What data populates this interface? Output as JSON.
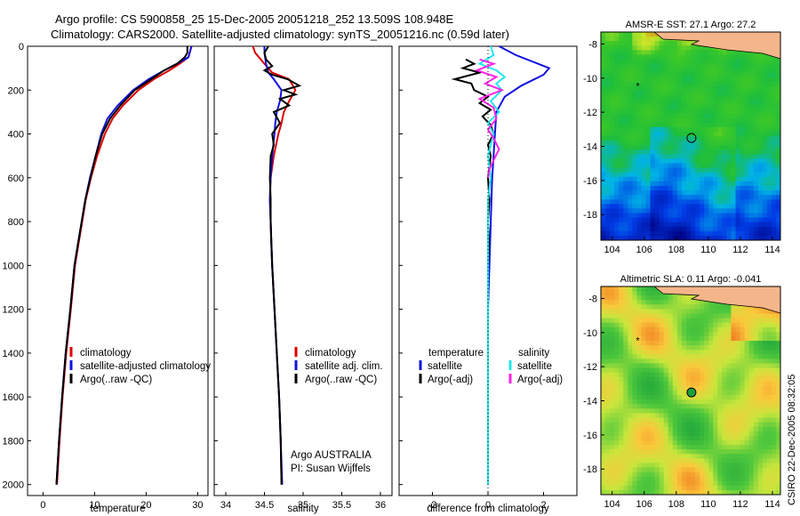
{
  "title_line1": "Argo profile: CS 5900858_25 15-Dec-2005 20051218_252 13.509S 108.948E",
  "title_line2": "Climatology: CARS2000. Satellite-adjusted climatology: synTS_20051216.nc (0.59d later)",
  "credit": "CSIRO 22-Dec-2005 08:32:05",
  "colors": {
    "red": "#e00000",
    "blue": "#1010e0",
    "black": "#000000",
    "cyan": "#22e6ee",
    "magenta": "#ff22e6"
  },
  "chart_data": [
    {
      "type": "line",
      "xlabel": "temperature",
      "xticks": [
        "0",
        "10",
        "20",
        "30"
      ],
      "yticks": [
        "0",
        "200",
        "400",
        "600",
        "800",
        "1000",
        "1200",
        "1400",
        "1600",
        "1800",
        "2000"
      ],
      "xlim": [
        -3,
        32
      ],
      "ylim": [
        2050,
        0
      ],
      "legend": [
        "climatology",
        "satellite-adjusted climatology",
        "Argo(..raw -QC)"
      ],
      "series": [
        {
          "name": "climatology",
          "color": "red",
          "points": [
            [
              28.8,
              0
            ],
            [
              28.2,
              50
            ],
            [
              26.5,
              80
            ],
            [
              24.5,
              110
            ],
            [
              21.5,
              150
            ],
            [
              18.5,
              200
            ],
            [
              15.5,
              270
            ],
            [
              13.5,
              330
            ],
            [
              12,
              400
            ],
            [
              10.5,
              500
            ],
            [
              9.3,
              600
            ],
            [
              8.3,
              700
            ],
            [
              7.6,
              800
            ],
            [
              6.9,
              900
            ],
            [
              6.2,
              1000
            ],
            [
              5.4,
              1200
            ],
            [
              4.5,
              1400
            ],
            [
              3.8,
              1600
            ],
            [
              3.2,
              1800
            ],
            [
              2.7,
              2000
            ]
          ]
        },
        {
          "name": "satellite-adjusted climatology",
          "color": "blue",
          "points": [
            [
              28.8,
              0
            ],
            [
              28.2,
              50
            ],
            [
              26,
              80
            ],
            [
              23.5,
              110
            ],
            [
              20.5,
              150
            ],
            [
              17.5,
              200
            ],
            [
              14.5,
              270
            ],
            [
              12.5,
              330
            ],
            [
              11.3,
              400
            ],
            [
              10.2,
              500
            ],
            [
              9.1,
              600
            ],
            [
              8.2,
              700
            ],
            [
              7.5,
              800
            ],
            [
              6.8,
              900
            ],
            [
              6.1,
              1000
            ],
            [
              5.3,
              1200
            ],
            [
              4.4,
              1400
            ],
            [
              3.7,
              1600
            ],
            [
              3.1,
              1800
            ],
            [
              2.6,
              2000
            ]
          ]
        },
        {
          "name": "Argo(..raw -QC)",
          "color": "black",
          "points": [
            [
              28,
              0
            ],
            [
              28,
              30
            ],
            [
              27.5,
              50
            ],
            [
              26,
              80
            ],
            [
              23.5,
              110
            ],
            [
              21,
              150
            ],
            [
              17.8,
              200
            ],
            [
              15,
              270
            ],
            [
              13,
              330
            ],
            [
              11.5,
              400
            ],
            [
              10.2,
              500
            ],
            [
              9.2,
              600
            ],
            [
              8.2,
              700
            ],
            [
              7.5,
              800
            ],
            [
              6.8,
              900
            ],
            [
              6.1,
              1000
            ],
            [
              5.3,
              1200
            ],
            [
              4.4,
              1400
            ],
            [
              3.7,
              1600
            ],
            [
              3.1,
              1800
            ],
            [
              2.6,
              2000
            ]
          ]
        }
      ]
    },
    {
      "type": "line",
      "xlabel": "salinity",
      "xticks": [
        "34",
        "34.5",
        "35",
        "35.5",
        "36"
      ],
      "xlim": [
        33.85,
        36.15
      ],
      "ylim": [
        2050,
        0
      ],
      "legend": [
        "climatology",
        "satellite adj. clim.",
        "Argo(..raw -QC)"
      ],
      "annotation": [
        "Argo AUSTRALIA",
        "PI: Susan Wijffels"
      ],
      "series": [
        {
          "name": "climatology",
          "color": "red",
          "points": [
            [
              34.35,
              0
            ],
            [
              34.38,
              30
            ],
            [
              34.5,
              80
            ],
            [
              34.6,
              120
            ],
            [
              34.82,
              150
            ],
            [
              34.9,
              200
            ],
            [
              34.82,
              250
            ],
            [
              34.75,
              300
            ],
            [
              34.72,
              350
            ],
            [
              34.68,
              400
            ],
            [
              34.62,
              500
            ],
            [
              34.58,
              600
            ],
            [
              34.57,
              700
            ],
            [
              34.58,
              800
            ],
            [
              34.59,
              900
            ],
            [
              34.6,
              1000
            ],
            [
              34.63,
              1200
            ],
            [
              34.66,
              1400
            ],
            [
              34.69,
              1600
            ],
            [
              34.71,
              1800
            ],
            [
              34.72,
              2000
            ]
          ]
        },
        {
          "name": "satellite adj. clim.",
          "color": "blue",
          "points": [
            [
              34.5,
              0
            ],
            [
              34.5,
              30
            ],
            [
              34.52,
              80
            ],
            [
              34.55,
              120
            ],
            [
              34.62,
              150
            ],
            [
              34.72,
              200
            ],
            [
              34.7,
              250
            ],
            [
              34.66,
              300
            ],
            [
              34.64,
              350
            ],
            [
              34.63,
              400
            ],
            [
              34.6,
              500
            ],
            [
              34.58,
              600
            ],
            [
              34.57,
              700
            ],
            [
              34.58,
              800
            ],
            [
              34.59,
              900
            ],
            [
              34.6,
              1000
            ],
            [
              34.63,
              1200
            ],
            [
              34.66,
              1400
            ],
            [
              34.69,
              1600
            ],
            [
              34.71,
              1800
            ],
            [
              34.73,
              2000
            ]
          ]
        },
        {
          "name": "Argo(..raw -QC)",
          "color": "black",
          "points": [
            [
              34.55,
              0
            ],
            [
              34.5,
              30
            ],
            [
              34.52,
              60
            ],
            [
              34.6,
              90
            ],
            [
              34.5,
              110
            ],
            [
              34.6,
              130
            ],
            [
              34.8,
              150
            ],
            [
              34.95,
              180
            ],
            [
              34.75,
              200
            ],
            [
              34.9,
              220
            ],
            [
              34.7,
              240
            ],
            [
              34.82,
              270
            ],
            [
              34.62,
              300
            ],
            [
              34.7,
              350
            ],
            [
              34.6,
              400
            ],
            [
              34.62,
              450
            ],
            [
              34.58,
              500
            ],
            [
              34.57,
              600
            ],
            [
              34.58,
              700
            ],
            [
              34.58,
              800
            ],
            [
              34.59,
              900
            ],
            [
              34.6,
              1000
            ],
            [
              34.63,
              1200
            ],
            [
              34.66,
              1400
            ],
            [
              34.69,
              1600
            ],
            [
              34.71,
              1800
            ],
            [
              34.72,
              2000
            ]
          ]
        }
      ]
    },
    {
      "type": "line",
      "xlabel": "difference from climatology",
      "xticks": [
        "-2",
        "0",
        "2"
      ],
      "xlim": [
        -3.2,
        3.2
      ],
      "ylim": [
        2050,
        0
      ],
      "legend_headers": [
        "temperature",
        "salinity"
      ],
      "legend_left": [
        "satellite",
        "Argo(-adj)"
      ],
      "legend_right": [
        "satellite",
        "Argo(-adj)"
      ],
      "series": [
        {
          "name": "temperature satellite",
          "color": "blue",
          "points": [
            [
              0.4,
              0
            ],
            [
              1,
              40
            ],
            [
              2.2,
              100
            ],
            [
              2,
              130
            ],
            [
              1.2,
              180
            ],
            [
              0.6,
              230
            ],
            [
              0.3,
              300
            ],
            [
              0.25,
              400
            ],
            [
              0.2,
              500
            ],
            [
              0.15,
              600
            ],
            [
              0.1,
              800
            ],
            [
              0.05,
              1000
            ],
            [
              0,
              1200
            ],
            [
              0,
              1600
            ],
            [
              0,
              2000
            ]
          ]
        },
        {
          "name": "temperature Argo(-adj)",
          "color": "black",
          "points": [
            [
              -0.8,
              60
            ],
            [
              -0.5,
              80
            ],
            [
              -0.9,
              100
            ],
            [
              -0.3,
              120
            ],
            [
              -1.2,
              150
            ],
            [
              -0.6,
              170
            ],
            [
              -0.5,
              200
            ],
            [
              0,
              230
            ],
            [
              -0.3,
              260
            ],
            [
              0.1,
              290
            ],
            [
              -0.2,
              320
            ],
            [
              0.1,
              360
            ],
            [
              0.2,
              400
            ],
            [
              0,
              450
            ],
            [
              0.1,
              500
            ],
            [
              0,
              600
            ],
            [
              0.05,
              700
            ],
            [
              0,
              800
            ],
            [
              0.03,
              900
            ],
            [
              0,
              1000
            ],
            [
              0,
              1200
            ],
            [
              0,
              1500
            ],
            [
              0,
              1800
            ],
            [
              0,
              1850
            ]
          ]
        },
        {
          "name": "salinity satellite",
          "color": "cyan",
          "points": [
            [
              0.1,
              0
            ],
            [
              0.2,
              40
            ],
            [
              -0.3,
              80
            ],
            [
              0.3,
              110
            ],
            [
              0.6,
              140
            ],
            [
              0.3,
              170
            ],
            [
              0.5,
              200
            ],
            [
              0.1,
              250
            ],
            [
              0.4,
              300
            ],
            [
              0,
              350
            ],
            [
              0.2,
              400
            ],
            [
              0,
              500
            ],
            [
              0.1,
              600
            ],
            [
              0,
              700
            ],
            [
              0,
              900
            ],
            [
              0,
              1200
            ],
            [
              0,
              1600
            ],
            [
              0,
              2000
            ]
          ]
        },
        {
          "name": "salinity Argo(-adj)",
          "color": "magenta",
          "points": [
            [
              -0.3,
              60
            ],
            [
              0.2,
              80
            ],
            [
              -0.4,
              110
            ],
            [
              0.3,
              140
            ],
            [
              -0.1,
              170
            ],
            [
              0.5,
              200
            ],
            [
              -0.3,
              240
            ],
            [
              0.2,
              280
            ],
            [
              0.3,
              330
            ],
            [
              0,
              380
            ],
            [
              0.2,
              420
            ],
            [
              0.4,
              470
            ],
            [
              0.2,
              520
            ],
            [
              0.05,
              560
            ],
            [
              0,
              600
            ]
          ]
        }
      ]
    },
    {
      "type": "heatmap",
      "title": "AMSR-E SST: 27.1 Argo: 27.2",
      "xticks": [
        "104",
        "106",
        "108",
        "110",
        "112",
        "114"
      ],
      "yticks": [
        "-8",
        "-10",
        "-12",
        "-14",
        "-16",
        "-18"
      ],
      "xlim": [
        103.3,
        114.5
      ],
      "ylim": [
        -7.3,
        -19.5
      ],
      "argo_float": [
        108.95,
        -13.51
      ],
      "marker": "circle"
    },
    {
      "type": "heatmap",
      "title": "Altimetric SLA: 0.11 Argo: -0.041",
      "xticks": [
        "104",
        "106",
        "108",
        "110",
        "112",
        "114"
      ],
      "yticks": [
        "-8",
        "-10",
        "-12",
        "-14",
        "-16",
        "-18"
      ],
      "xlim": [
        103.3,
        114.5
      ],
      "ylim": [
        -7.3,
        -19.5
      ],
      "argo_float": [
        108.95,
        -13.51
      ],
      "marker": "filled-circle"
    }
  ]
}
